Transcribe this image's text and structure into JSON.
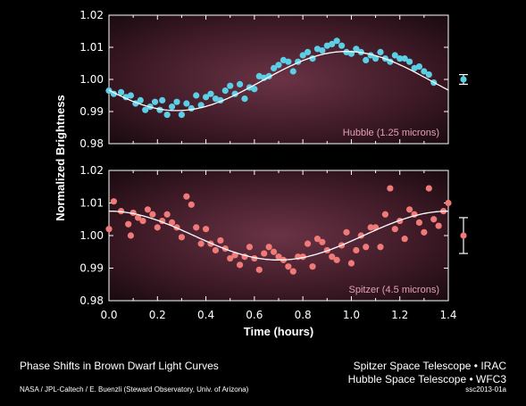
{
  "chart_data": [
    {
      "type": "scatter",
      "title": "Hubble (1.25 microns)",
      "ylabel": "Normalized Brightness",
      "xlabel": "Time (hours)",
      "xlim": [
        0,
        1.4
      ],
      "ylim": [
        0.98,
        1.02
      ],
      "yticks": [
        "0.98",
        "0.99",
        "1.00",
        "1.01",
        "1.02"
      ],
      "grid": false,
      "point_color": "#5ccfe6",
      "series": [
        {
          "points": [
            [
              0.0,
              0.9965
            ],
            [
              0.02,
              0.9955
            ],
            [
              0.05,
              0.996
            ],
            [
              0.07,
              0.9945
            ],
            [
              0.09,
              0.995
            ],
            [
              0.11,
              0.9925
            ],
            [
              0.13,
              0.9935
            ],
            [
              0.15,
              0.9905
            ],
            [
              0.17,
              0.9915
            ],
            [
              0.19,
              0.993
            ],
            [
              0.21,
              0.9905
            ],
            [
              0.22,
              0.9935
            ],
            [
              0.24,
              0.989
            ],
            [
              0.26,
              0.9915
            ],
            [
              0.28,
              0.993
            ],
            [
              0.3,
              0.989
            ],
            [
              0.32,
              0.9925
            ],
            [
              0.34,
              0.991
            ],
            [
              0.36,
              0.995
            ],
            [
              0.38,
              0.992
            ],
            [
              0.4,
              0.9945
            ],
            [
              0.42,
              0.9955
            ],
            [
              0.44,
              0.994
            ],
            [
              0.46,
              0.9935
            ],
            [
              0.48,
              0.9965
            ],
            [
              0.5,
              0.998
            ],
            [
              0.52,
              0.9955
            ],
            [
              0.54,
              0.9985
            ],
            [
              0.56,
              0.994
            ],
            [
              0.58,
              0.9975
            ],
            [
              0.6,
              0.997
            ],
            [
              0.62,
              1.001
            ],
            [
              0.64,
              1.0005
            ],
            [
              0.66,
              1.001
            ],
            [
              0.68,
              1.0035
            ],
            [
              0.7,
              1.0045
            ],
            [
              0.72,
              1.006
            ],
            [
              0.74,
              1.0055
            ],
            [
              0.76,
              1.0025
            ],
            [
              0.78,
              1.0055
            ],
            [
              0.8,
              1.0075
            ],
            [
              0.82,
              1.0085
            ],
            [
              0.84,
              1.0065
            ],
            [
              0.86,
              1.0095
            ],
            [
              0.88,
              1.009
            ],
            [
              0.9,
              1.0105
            ],
            [
              0.92,
              1.011
            ],
            [
              0.94,
              1.012
            ],
            [
              0.96,
              1.0105
            ],
            [
              0.98,
              1.0085
            ],
            [
              1.0,
              1.008
            ],
            [
              1.02,
              1.0095
            ],
            [
              1.04,
              1.0085
            ],
            [
              1.06,
              1.006
            ],
            [
              1.08,
              1.0075
            ],
            [
              1.1,
              1.0065
            ],
            [
              1.12,
              1.0085
            ],
            [
              1.14,
              1.0065
            ],
            [
              1.16,
              1.0055
            ],
            [
              1.18,
              1.0075
            ],
            [
              1.2,
              1.0065
            ],
            [
              1.22,
              1.0065
            ],
            [
              1.24,
              1.0055
            ],
            [
              1.26,
              1.0035
            ],
            [
              1.28,
              1.004
            ],
            [
              1.3,
              1.0025
            ],
            [
              1.32,
              1.0015
            ],
            [
              1.34,
              0.999
            ]
          ]
        }
      ],
      "model_curve": {
        "mean": 0.9995,
        "amplitude": 0.0092,
        "phase_peak_hours": 0.98,
        "period_hours": 1.4
      },
      "error_bar": {
        "value": 1.0,
        "err": 0.0015
      }
    },
    {
      "type": "scatter",
      "title": "Spitzer (4.5 microns)",
      "ylabel": "Normalized Brightness",
      "xlabel": "Time (hours)",
      "xlim": [
        0,
        1.4
      ],
      "ylim": [
        0.98,
        1.02
      ],
      "yticks": [
        "0.98",
        "0.99",
        "1.00",
        "1.01",
        "1.02"
      ],
      "xticks": [
        "0.0",
        "0.2",
        "0.4",
        "0.6",
        "0.8",
        "1.0",
        "1.2",
        "1.4"
      ],
      "grid": false,
      "point_color": "#f07a78",
      "series": [
        {
          "points": [
            [
              0.0,
              1.002
            ],
            [
              0.02,
              1.0105
            ],
            [
              0.05,
              1.0075
            ],
            [
              0.08,
              1.0035
            ],
            [
              0.09,
              1.0
            ],
            [
              0.1,
              1.007
            ],
            [
              0.12,
              1.0055
            ],
            [
              0.14,
              1.0045
            ],
            [
              0.16,
              1.008
            ],
            [
              0.18,
              1.0065
            ],
            [
              0.2,
              1.0025
            ],
            [
              0.22,
              1.0045
            ],
            [
              0.24,
              1.0065
            ],
            [
              0.26,
              1.004
            ],
            [
              0.28,
              1.0025
            ],
            [
              0.3,
              0.9995
            ],
            [
              0.32,
              1.012
            ],
            [
              0.34,
              1.0095
            ],
            [
              0.36,
              1.0025
            ],
            [
              0.38,
              0.9975
            ],
            [
              0.4,
              1.002
            ],
            [
              0.42,
              0.9975
            ],
            [
              0.44,
              0.9955
            ],
            [
              0.46,
              0.9985
            ],
            [
              0.48,
              0.996
            ],
            [
              0.5,
              0.993
            ],
            [
              0.52,
              0.994
            ],
            [
              0.54,
              0.991
            ],
            [
              0.56,
              0.9935
            ],
            [
              0.58,
              0.9965
            ],
            [
              0.6,
              0.993
            ],
            [
              0.62,
              0.9895
            ],
            [
              0.64,
              0.9945
            ],
            [
              0.66,
              0.9965
            ],
            [
              0.68,
              0.995
            ],
            [
              0.7,
              0.9935
            ],
            [
              0.72,
              0.9925
            ],
            [
              0.74,
              0.9905
            ],
            [
              0.76,
              0.989
            ],
            [
              0.78,
              0.9935
            ],
            [
              0.8,
              0.9935
            ],
            [
              0.82,
              0.9975
            ],
            [
              0.84,
              0.9905
            ],
            [
              0.86,
              0.999
            ],
            [
              0.88,
              0.998
            ],
            [
              0.9,
              0.9955
            ],
            [
              0.92,
              0.9935
            ],
            [
              0.94,
              0.9925
            ],
            [
              0.96,
              0.997
            ],
            [
              0.98,
              1.001
            ],
            [
              1.0,
              0.9915
            ],
            [
              1.02,
              0.9955
            ],
            [
              1.04,
              1.0
            ],
            [
              1.06,
              0.9965
            ],
            [
              1.08,
              1.0025
            ],
            [
              1.1,
              1.0025
            ],
            [
              1.12,
              0.9965
            ],
            [
              1.14,
              1.0065
            ],
            [
              1.16,
              1.0145
            ],
            [
              1.18,
              1.002
            ],
            [
              1.2,
              1.0045
            ],
            [
              1.22,
              0.999
            ],
            [
              1.24,
              1.008
            ],
            [
              1.26,
              1.0065
            ],
            [
              1.28,
              1.004
            ],
            [
              1.3,
              1.001
            ],
            [
              1.32,
              1.0145
            ],
            [
              1.34,
              1.005
            ],
            [
              1.36,
              1.003
            ],
            [
              1.38,
              1.0075
            ],
            [
              1.4,
              1.01
            ]
          ]
        }
      ],
      "model_curve": {
        "mean": 1.0,
        "amplitude": 0.0075,
        "phase_peak_hours": 1.4,
        "period_hours": 1.4
      },
      "error_bar": {
        "value": 1.0,
        "err": 0.0055
      }
    }
  ],
  "colors": {
    "background": "#000000",
    "panel_center": "#5c2a3a",
    "panel_edge": "#1e0d13",
    "hubble_points": "#5ccfe6",
    "spitzer_points": "#f07a78",
    "curve": "#ffffff"
  },
  "footer": {
    "title": "Phase Shifts in Brown Dwarf Light Curves",
    "credit": "NASA / JPL-Caltech / E. Buenzli (Steward Observatory, Univ. of Arizona)",
    "instrument1": "Spitzer Space Telescope • IRAC",
    "instrument2": "Hubble Space Telescope • WFC3",
    "code": "ssc2013-01a"
  }
}
